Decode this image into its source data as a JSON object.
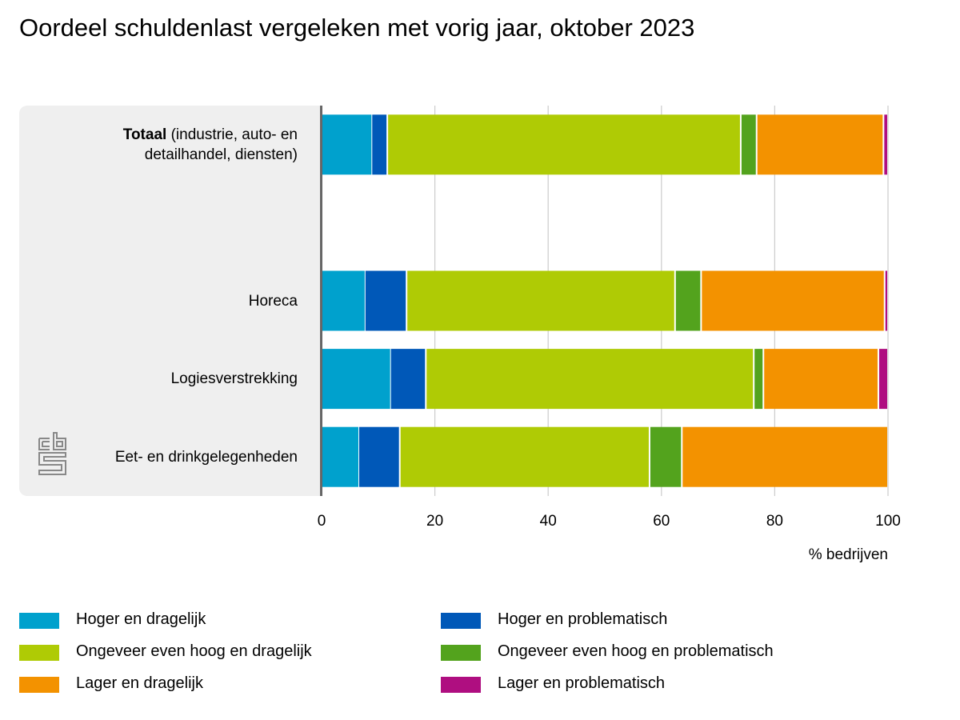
{
  "title": "Oordeel schuldenlast vergeleken met vorig jaar, oktober 2023",
  "chart_data": {
    "type": "bar",
    "orientation": "horizontal",
    "stacked": true,
    "categories": [
      {
        "bold": "Totaal",
        "rest": " (industrie, auto- en detailhandel, diensten)"
      },
      {
        "bold": "",
        "rest": ""
      },
      {
        "bold": "",
        "rest": "Horeca"
      },
      {
        "bold": "",
        "rest": "Logiesverstrekking"
      },
      {
        "bold": "",
        "rest": "Eet- en drinkgelegenheden"
      }
    ],
    "series": [
      {
        "name": "Hoger en dragelijk",
        "color": "#00a1cd",
        "values": [
          8.8,
          null,
          7.6,
          12.1,
          6.5
        ]
      },
      {
        "name": "Hoger en problematisch",
        "color": "#0058b8",
        "values": [
          2.8,
          null,
          7.4,
          6.3,
          7.3
        ]
      },
      {
        "name": "Ongeveer even hoog en dragelijk",
        "color": "#afcb05",
        "values": [
          62.4,
          null,
          47.4,
          57.9,
          44.1
        ]
      },
      {
        "name": "Ongeveer even hoog en problematisch",
        "color": "#53a31d",
        "values": [
          2.8,
          null,
          4.6,
          1.7,
          5.7
        ]
      },
      {
        "name": "Lager en dragelijk",
        "color": "#f39200",
        "values": [
          22.4,
          null,
          32.4,
          20.3,
          36.4
        ]
      },
      {
        "name": "Lager en problematisch",
        "color": "#af0e80",
        "values": [
          0.8,
          null,
          0.6,
          1.7,
          0.0
        ]
      }
    ],
    "xlim": [
      0,
      100
    ],
    "xticks": [
      "0",
      "20",
      "40",
      "60",
      "80",
      "100"
    ],
    "xlabel": "% bedrijven",
    "grid": true,
    "legend_position": "bottom"
  }
}
